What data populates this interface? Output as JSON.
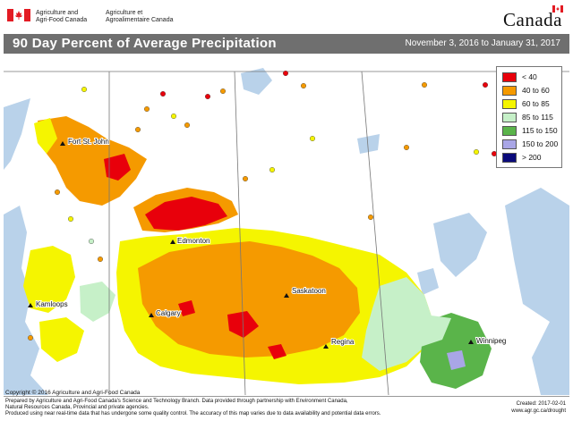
{
  "header": {
    "dept_en_line1": "Agriculture and",
    "dept_en_line2": "Agri-Food Canada",
    "dept_fr_line1": "Agriculture et",
    "dept_fr_line2": "Agroalimentaire Canada",
    "wordmark": "Canada"
  },
  "title": {
    "text": "90 Day Percent of Average Precipitation",
    "dates": "November 3, 2016 to January 31, 2017"
  },
  "legend": {
    "items": [
      {
        "label": "< 40",
        "color": "#e8000b"
      },
      {
        "label": "40 to 60",
        "color": "#f59a00"
      },
      {
        "label": "60 to 85",
        "color": "#f5f500"
      },
      {
        "label": "85 to 115",
        "color": "#c6f0c8"
      },
      {
        "label": "115 to 150",
        "color": "#5ab44a"
      },
      {
        "label": "150 to 200",
        "color": "#a9a6e6"
      },
      {
        "label": "> 200",
        "color": "#0a0a7a"
      }
    ]
  },
  "cities": {
    "fort_st_john": "Fort St. John",
    "edmonton": "Edmonton",
    "saskatoon": "Saskatoon",
    "kamloops": "Kamloops",
    "calgary": "Calgary",
    "regina": "Regina",
    "winnipeg": "Winnipeg"
  },
  "footer": {
    "copyright": "Copyright © 2016 Agriculture and Agri-Food Canada",
    "line1": "Prepared by Agriculture and Agri-Food Canada's Science and Technology Branch. Data provided through partnership with Environment Canada,",
    "line2": "Natural Resources Canada, Provincial and private agencies.",
    "line3": "Produced using near real-time data that has undergone some quality control. The accuracy of this map varies due to data availability and potential data errors.",
    "created": "Created: 2017-02-01",
    "url": "www.agr.gc.ca/drought"
  },
  "colors": {
    "title_bar": "#6f6f6f",
    "water": "#b9d2ea",
    "land": "#ffffff"
  }
}
